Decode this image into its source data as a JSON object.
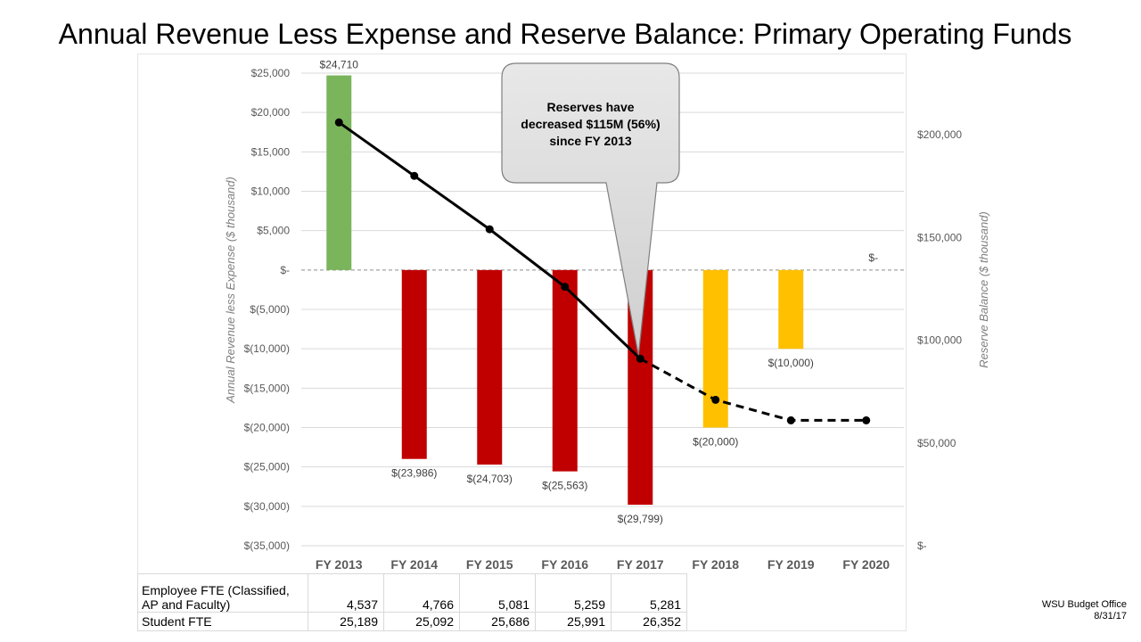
{
  "slide": {
    "title": "Annual Revenue Less Expense and Reserve Balance: Primary Operating Funds",
    "footer_line1": "WSU Budget Office",
    "footer_line2": "8/31/17"
  },
  "chart_data": {
    "type": "bar",
    "categories": [
      "FY 2013",
      "FY 2014",
      "FY 2015",
      "FY 2016",
      "FY 2017",
      "FY 2018",
      "FY 2019",
      "FY 2020"
    ],
    "ylabel": "Annual Revenue less Expense ($ thousand)",
    "y2label": "Reserve Balance ($ thousand)",
    "ylim": [
      -35000,
      25000
    ],
    "y2lim": [
      0,
      230000
    ],
    "yticks": [
      25000,
      20000,
      15000,
      10000,
      5000,
      0,
      -5000,
      -10000,
      -15000,
      -20000,
      -25000,
      -30000,
      -35000
    ],
    "yticklabels": [
      "$25,000",
      "$20,000",
      "$15,000",
      "$10,000",
      "$5,000",
      "$-",
      "$(5,000)",
      "$(10,000)",
      "$(15,000)",
      "$(20,000)",
      "$(25,000)",
      "$(30,000)",
      "$(35,000)"
    ],
    "y2ticks": [
      200000,
      150000,
      100000,
      50000,
      0
    ],
    "y2ticklabels": [
      "$200,000",
      "$150,000",
      "$100,000",
      "$50,000",
      "$-"
    ],
    "grid": true,
    "series": [
      {
        "type": "bar",
        "values": [
          24710,
          -23986,
          -24703,
          -25563,
          -29799,
          -20000,
          -10000,
          0
        ],
        "labels": [
          "$24,710",
          "$(23,986)",
          "$(24,703)",
          "$(25,563)",
          "$(29,799)",
          "$(20,000)",
          "$(10,000)",
          "$-"
        ],
        "colors": [
          "#7ab55c",
          "#c00000",
          "#c00000",
          "#c00000",
          "#c00000",
          "#ffc000",
          "#ffc000",
          "#ffc000"
        ]
      },
      {
        "type": "line",
        "axis": "right",
        "values": [
          206000,
          180000,
          154000,
          126000,
          91000,
          71000,
          61000,
          61000
        ],
        "actual_through_index": 4,
        "color": "#000000"
      }
    ],
    "annotations": [
      {
        "text_lines": [
          "Reserves have",
          "decreased $115M (56%)",
          "since FY 2013"
        ],
        "points_to": "FY 2017"
      }
    ]
  },
  "table": {
    "rows": [
      {
        "label_lines": [
          "Employee FTE (Classified,",
          "AP and Faculty)"
        ],
        "values": [
          "4,537",
          "4,766",
          "5,081",
          "5,259",
          "5,281"
        ]
      },
      {
        "label_lines": [
          "Student FTE"
        ],
        "values": [
          "25,189",
          "25,092",
          "25,686",
          "25,991",
          "26,352"
        ]
      }
    ]
  }
}
